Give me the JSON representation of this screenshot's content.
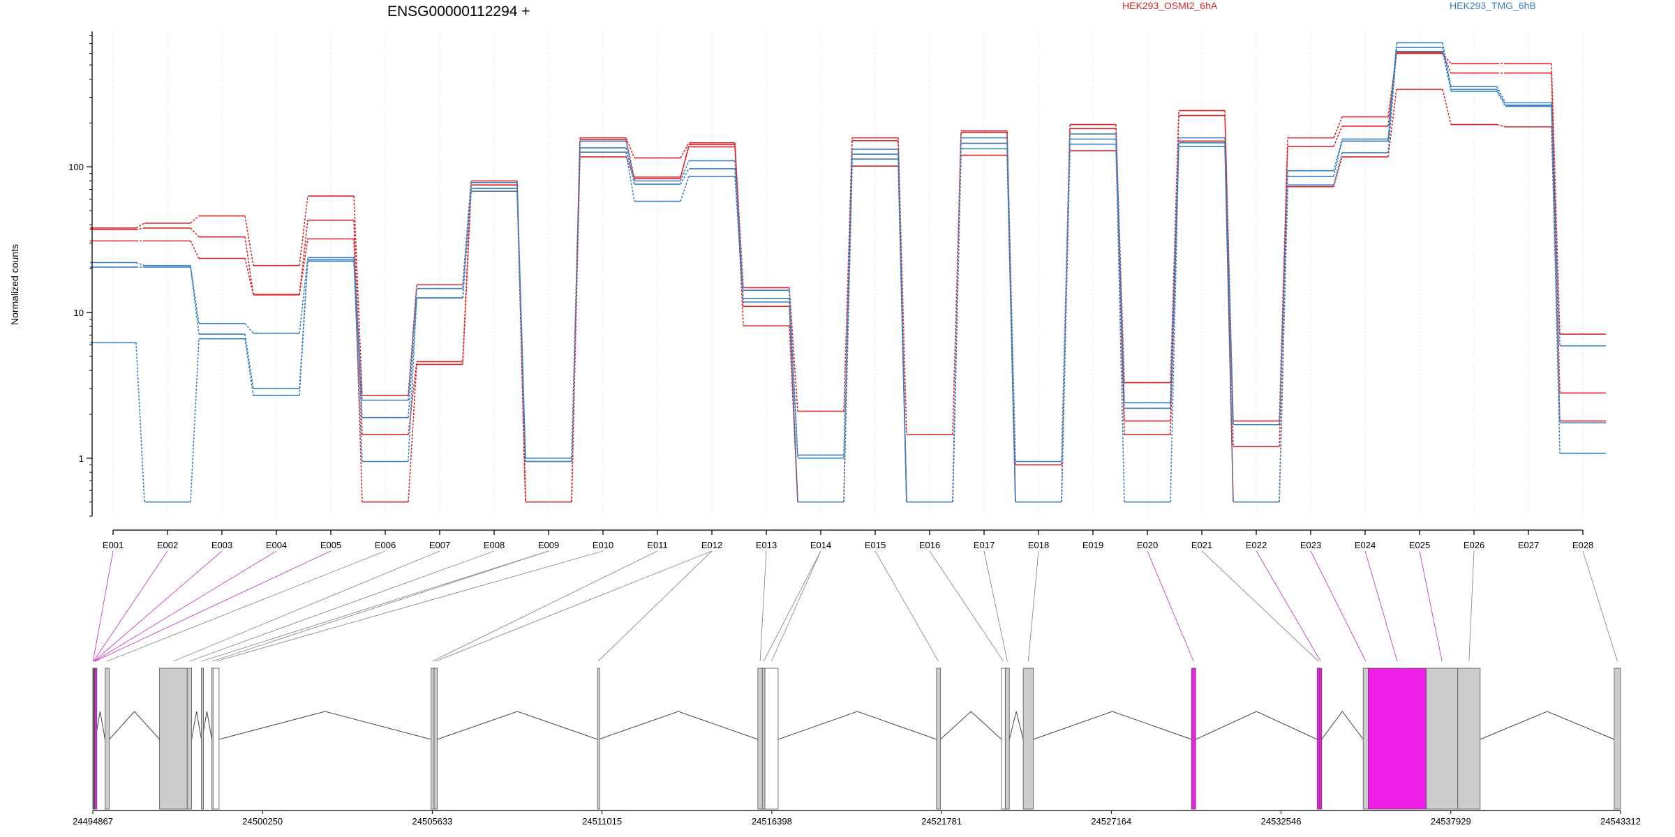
{
  "chart_data": {
    "type": "line",
    "title": "ENSG00000112294 +",
    "ylabel": "Normalized counts",
    "yscale": "log",
    "ylim": [
      0.4,
      850
    ],
    "yticks": [
      "1",
      "10",
      "100"
    ],
    "grid": "vertical dotted",
    "legend_placement": "top",
    "categories": [
      "E001",
      "E002",
      "E003",
      "E004",
      "E005",
      "E006",
      "E007",
      "E008",
      "E009",
      "E010",
      "E011",
      "E012",
      "E013",
      "E014",
      "E015",
      "E016",
      "E017",
      "E018",
      "E019",
      "E020",
      "E021",
      "E022",
      "E023",
      "E024",
      "E025",
      "E026",
      "E027",
      "E028"
    ],
    "legend": [
      {
        "label": "HEK293_OSMI2_6hA",
        "color": "#d62728"
      },
      {
        "label": "HEK293_TMG_6hB",
        "color": "#3a7fc0"
      }
    ],
    "series": [
      {
        "group": "HEK293_OSMI2_6hA",
        "color": "#d62728",
        "values": [
          38,
          41,
          46,
          21,
          63,
          2.7,
          15.5,
          80,
          0.5,
          158,
          115,
          146,
          14.8,
          2.1,
          158,
          1.45,
          176,
          0.9,
          195,
          3.3,
          243,
          1.8,
          158,
          220,
          600,
          510,
          510,
          7.1
        ]
      },
      {
        "group": "HEK293_OSMI2_6hA",
        "color": "#d62728",
        "values": [
          37,
          38,
          33,
          13.3,
          43,
          1.45,
          4.6,
          75,
          0.5,
          154,
          83,
          142,
          11,
          0.5,
          151,
          0.5,
          172,
          0.5,
          183,
          1.8,
          225,
          1.2,
          138,
          190,
          610,
          440,
          440,
          2.8
        ]
      },
      {
        "group": "HEK293_OSMI2_6hA",
        "color": "#d62728",
        "values": [
          31,
          31,
          23.5,
          13.2,
          32,
          0.5,
          4.4,
          68,
          0.5,
          117,
          85,
          137,
          8.1,
          0.5,
          101,
          0.5,
          120,
          0.5,
          129,
          1.45,
          150,
          0.5,
          73,
          117,
          340,
          195,
          188,
          1.8
        ]
      },
      {
        "group": "HEK293_TMG_6hB",
        "color": "#3a7fc0",
        "values": [
          22,
          21,
          8.4,
          7.2,
          23.8,
          2.5,
          14.6,
          78,
          1.0,
          150,
          80,
          110,
          14.2,
          1.05,
          132,
          0.5,
          158,
          0.95,
          168,
          2.4,
          158,
          1.7,
          94,
          155,
          710,
          355,
          275,
          5.9
        ]
      },
      {
        "group": "HEK293_TMG_6hB",
        "color": "#3a7fc0",
        "values": [
          20.5,
          20.5,
          7.1,
          3.0,
          23,
          1.9,
          12.6,
          71,
          0.95,
          135,
          76,
          97,
          12.5,
          1.0,
          122,
          0.5,
          145,
          0.5,
          155,
          2.2,
          146,
          1.7,
          86,
          150,
          660,
          340,
          265,
          1.75
        ]
      },
      {
        "group": "HEK293_TMG_6hB",
        "color": "#3a7fc0",
        "values": [
          6.2,
          0.5,
          6.6,
          2.7,
          22.5,
          0.95,
          12.6,
          68,
          0.95,
          126,
          58,
          86,
          11.8,
          0.5,
          113,
          0.5,
          133,
          0.5,
          143,
          0.5,
          138,
          0.5,
          75,
          125,
          620,
          330,
          260,
          1.08
        ]
      }
    ],
    "genomic_coordinate_ticks": [
      "24494867",
      "24500250",
      "24505633",
      "24511015",
      "24516398",
      "24521781",
      "24527164",
      "24532546",
      "24537929",
      "24543312"
    ],
    "highlighted_exons": [
      "E001",
      "E002",
      "E003",
      "E004",
      "E005",
      "E020",
      "E022",
      "E023",
      "E024",
      "E025"
    ],
    "colors": {
      "highlight": "#ee1ee6",
      "exon_fill": "#cccccc",
      "connector": "#8a8a8a",
      "highlight_connector": "#c040c0",
      "intron_line": "#444444"
    }
  }
}
